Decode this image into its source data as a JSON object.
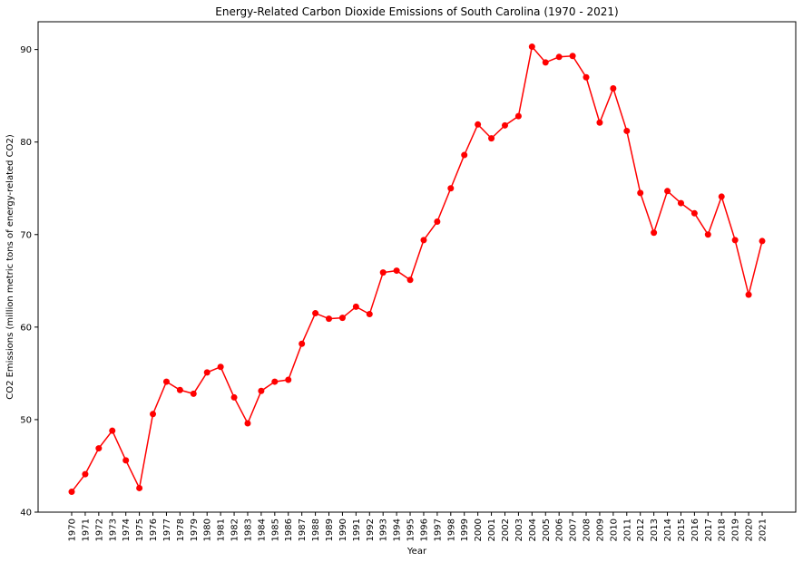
{
  "chart_data": {
    "type": "line",
    "title": "Energy-Related Carbon Dioxide Emissions of South Carolina (1970 - 2021)",
    "xlabel": "Year",
    "ylabel": "CO2 Emissions (million metric tons of energy-related CO2)",
    "ylim": [
      40,
      93
    ],
    "yticks": [
      40,
      50,
      60,
      70,
      80,
      90
    ],
    "grid": false,
    "line_color": "#ff0000",
    "marker": "circle",
    "x": [
      1970,
      1971,
      1972,
      1973,
      1974,
      1975,
      1976,
      1977,
      1978,
      1979,
      1980,
      1981,
      1982,
      1983,
      1984,
      1985,
      1986,
      1987,
      1988,
      1989,
      1990,
      1991,
      1992,
      1993,
      1994,
      1995,
      1996,
      1997,
      1998,
      1999,
      2000,
      2001,
      2002,
      2003,
      2004,
      2005,
      2006,
      2007,
      2008,
      2009,
      2010,
      2011,
      2012,
      2013,
      2014,
      2015,
      2016,
      2017,
      2018,
      2019,
      2020,
      2021
    ],
    "x_labels": [
      "1970",
      "1971",
      "1972",
      "1973",
      "1974",
      "1975",
      "1976",
      "1977",
      "1978",
      "1979",
      "1980",
      "1981",
      "1982",
      "1983",
      "1984",
      "1985",
      "1986",
      "1987",
      "1988",
      "1989",
      "1990",
      "1991",
      "1992",
      "1993",
      "1994",
      "1995",
      "1996",
      "1997",
      "1998",
      "1999",
      "2000",
      "2001",
      "2002",
      "2003",
      "2004",
      "2005",
      "2006",
      "2007",
      "2008",
      "2009",
      "2010",
      "2011",
      "2012",
      "2013",
      "2014",
      "2015",
      "2016",
      "2017",
      "2018",
      "2019",
      "2020",
      "2021"
    ],
    "y": [
      42.2,
      44.1,
      46.9,
      48.8,
      45.6,
      42.6,
      50.6,
      54.1,
      53.2,
      52.8,
      55.1,
      55.7,
      52.4,
      49.6,
      53.1,
      54.1,
      54.3,
      58.2,
      61.5,
      60.9,
      61.0,
      62.2,
      61.4,
      65.9,
      66.1,
      65.1,
      69.4,
      71.4,
      75.0,
      78.6,
      81.9,
      80.4,
      81.8,
      82.8,
      90.3,
      88.6,
      89.2,
      89.3,
      87.0,
      82.1,
      85.8,
      81.2,
      74.5,
      70.2,
      74.7,
      73.4,
      72.3,
      70.0,
      74.1,
      69.4,
      63.5,
      69.3
    ]
  }
}
